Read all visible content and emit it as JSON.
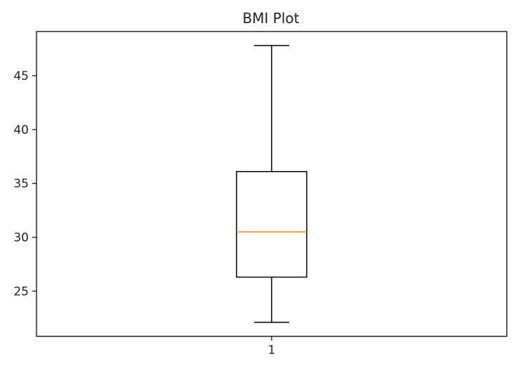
{
  "chart_data": {
    "type": "boxplot",
    "title": "BMI Plot",
    "xlabel": "",
    "ylabel": "",
    "categories": [
      "1"
    ],
    "boxes": [
      {
        "category": "1",
        "whisker_low": 22.1,
        "q1": 26.3,
        "median": 30.5,
        "q3": 36.1,
        "whisker_high": 47.8
      }
    ],
    "ylim": [
      20.8,
      49.1
    ],
    "yticks": [
      25,
      30,
      35,
      40,
      45
    ],
    "grid": false,
    "colors": {
      "box": "#000000",
      "median": "#ff7f0e",
      "axes": "#000000"
    }
  }
}
